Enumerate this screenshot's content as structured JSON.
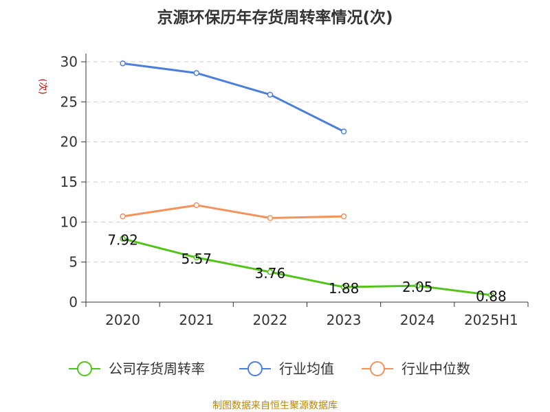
{
  "chart_data": {
    "type": "line",
    "title": "京源环保历年存货周转率情况(次)",
    "ylabel": "(次)",
    "xlabel": "",
    "categories": [
      "2020",
      "2021",
      "2022",
      "2023",
      "2024",
      "2025H1"
    ],
    "ylim": [
      0,
      30
    ],
    "yticks": [
      0,
      5,
      10,
      15,
      20,
      25,
      30
    ],
    "grid": true,
    "legend_position": "bottom",
    "series": [
      {
        "name": "公司存货周转率",
        "color": "#52c41a",
        "values": [
          7.92,
          5.57,
          3.76,
          1.88,
          2.05,
          0.88
        ],
        "labels": [
          "7.92",
          "5.57",
          "3.76",
          "1.88",
          "2.05",
          "0.88"
        ]
      },
      {
        "name": "行业均值",
        "color": "#4a7fdc",
        "values": [
          29.8,
          28.6,
          25.9,
          21.3,
          null,
          null
        ]
      },
      {
        "name": "行业中位数",
        "color": "#f5925a",
        "values": [
          10.7,
          12.1,
          10.5,
          10.7,
          null,
          null
        ]
      }
    ]
  },
  "source_text": "制图数据来自恒生聚源数据库"
}
